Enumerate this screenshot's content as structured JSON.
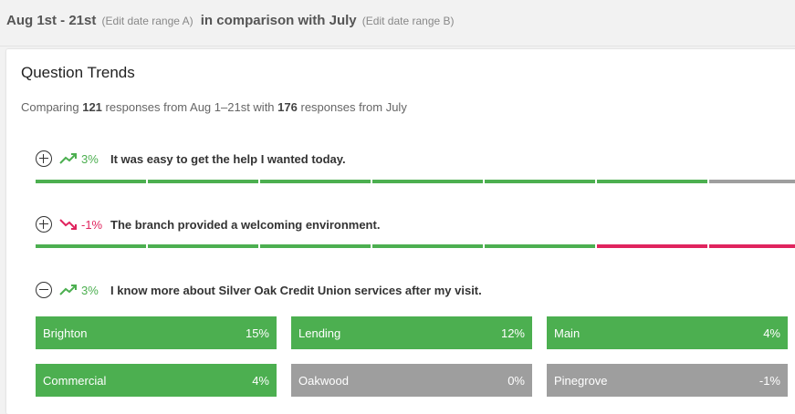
{
  "header": {
    "range_a": "Aug 1st - 21st",
    "edit_a": "(Edit date range A)",
    "comparison": "in comparison with July",
    "edit_b": "(Edit date range B)"
  },
  "card": {
    "title": "Question Trends",
    "summary": {
      "prefix": "Comparing",
      "count_a": "121",
      "middle": "responses from Aug 1–21st with",
      "count_b": "176",
      "suffix": "responses from July"
    }
  },
  "questions": [
    {
      "toggle": "expand",
      "trend": "up",
      "change": "3%",
      "text": "It was easy to get the help I wanted today.",
      "segments": [
        "green",
        "green",
        "green",
        "green",
        "green",
        "green",
        "grey"
      ]
    },
    {
      "toggle": "expand",
      "trend": "down",
      "change": "-1%",
      "text": "The branch provided a welcoming environment.",
      "segments": [
        "green",
        "green",
        "green",
        "green",
        "green",
        "red",
        "red"
      ]
    },
    {
      "toggle": "collapse",
      "trend": "up",
      "change": "3%",
      "text": "I know more about Silver Oak Credit Union services after my visit.",
      "breakdown": [
        {
          "name": "Brighton",
          "value": "15%",
          "status": "green"
        },
        {
          "name": "Lending",
          "value": "12%",
          "status": "green"
        },
        {
          "name": "Main",
          "value": "4%",
          "status": "green"
        },
        {
          "name": "Commercial",
          "value": "4%",
          "status": "green"
        },
        {
          "name": "Oakwood",
          "value": "0%",
          "status": "grey"
        },
        {
          "name": "Pinegrove",
          "value": "-1%",
          "status": "grey"
        }
      ]
    }
  ],
  "colors": {
    "positive": "#4caf50",
    "negative": "#e0245e",
    "neutral": "#9e9e9e"
  },
  "icons": {
    "expand": "plus-circle-icon",
    "collapse": "minus-circle-icon",
    "up": "trending-up-icon",
    "down": "trending-down-icon"
  }
}
